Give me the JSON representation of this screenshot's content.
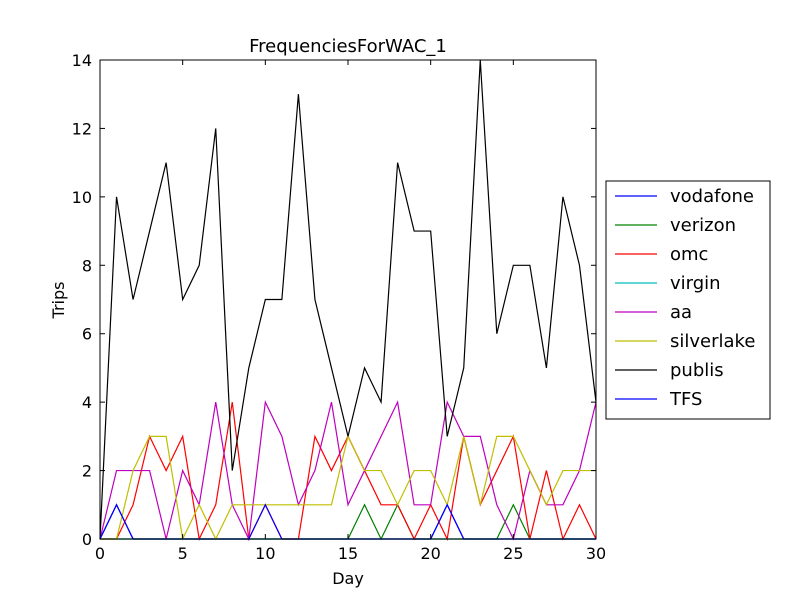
{
  "chart_data": {
    "type": "line",
    "title": "FrequenciesForWAC_1",
    "xlabel": "Day",
    "ylabel": "Trips",
    "xlim": [
      0,
      30
    ],
    "ylim": [
      0,
      14
    ],
    "xticks": [
      0,
      5,
      10,
      15,
      20,
      25,
      30
    ],
    "yticks": [
      0,
      2,
      4,
      6,
      8,
      10,
      12,
      14
    ],
    "legend_position": "right-outside",
    "grid": false,
    "x": [
      0,
      1,
      2,
      3,
      4,
      5,
      6,
      7,
      8,
      9,
      10,
      11,
      12,
      13,
      14,
      15,
      16,
      17,
      18,
      19,
      20,
      21,
      22,
      23,
      24,
      25,
      26,
      27,
      28,
      29,
      30
    ],
    "series": [
      {
        "name": "vodafone",
        "color": "#0000ff",
        "values": [
          0,
          1,
          0,
          0,
          0,
          0,
          0,
          0,
          0,
          0,
          0,
          0,
          0,
          0,
          0,
          0,
          0,
          0,
          0,
          0,
          0,
          1,
          0,
          0,
          0,
          0,
          0,
          0,
          0,
          0,
          0
        ]
      },
      {
        "name": "verizon",
        "color": "#008000",
        "values": [
          0,
          0,
          0,
          0,
          0,
          0,
          0,
          0,
          0,
          0,
          0,
          0,
          0,
          0,
          0,
          0,
          1,
          0,
          1,
          0,
          0,
          0,
          0,
          0,
          0,
          1,
          0,
          0,
          0,
          0,
          0
        ]
      },
      {
        "name": "omc",
        "color": "#ff0000",
        "values": [
          0,
          0,
          1,
          3,
          2,
          3,
          0,
          1,
          4,
          0,
          1,
          0,
          0,
          3,
          2,
          3,
          2,
          1,
          1,
          0,
          1,
          0,
          3,
          1,
          2,
          3,
          0,
          2,
          0,
          1,
          0
        ]
      },
      {
        "name": "virgin",
        "color": "#00bfbf",
        "values": [
          0,
          0,
          0,
          0,
          0,
          0,
          0,
          0,
          0,
          0,
          0,
          0,
          0,
          0,
          0,
          0,
          0,
          0,
          0,
          0,
          0,
          0,
          0,
          0,
          0,
          0,
          0,
          0,
          0,
          0,
          0
        ]
      },
      {
        "name": "aa",
        "color": "#bf00bf",
        "values": [
          0,
          2,
          2,
          2,
          0,
          2,
          1,
          4,
          1,
          0,
          4,
          3,
          1,
          2,
          4,
          1,
          2,
          3,
          4,
          1,
          1,
          4,
          3,
          3,
          1,
          0,
          2,
          1,
          1,
          2,
          4
        ]
      },
      {
        "name": "silverlake",
        "color": "#bfbf00",
        "values": [
          0,
          0,
          2,
          3,
          3,
          0,
          1,
          0,
          1,
          1,
          1,
          1,
          1,
          1,
          1,
          3,
          2,
          2,
          1,
          2,
          2,
          1,
          3,
          1,
          3,
          3,
          2,
          1,
          2,
          2,
          2
        ]
      },
      {
        "name": "publis",
        "color": "#000000",
        "values": [
          0,
          10,
          7,
          9,
          11,
          7,
          8,
          12,
          2,
          5,
          7,
          7,
          13,
          7,
          5,
          3,
          5,
          4,
          11,
          9,
          9,
          3,
          5,
          14,
          6,
          8,
          8,
          5,
          10,
          8,
          4
        ]
      },
      {
        "name": "TFS",
        "color": "#0000ff",
        "values": [
          0,
          1,
          0,
          0,
          0,
          0,
          0,
          0,
          0,
          0,
          1,
          0,
          0,
          0,
          0,
          0,
          0,
          0,
          0,
          0,
          0,
          1,
          0,
          0,
          0,
          0,
          0,
          0,
          0,
          0,
          0
        ]
      }
    ]
  }
}
